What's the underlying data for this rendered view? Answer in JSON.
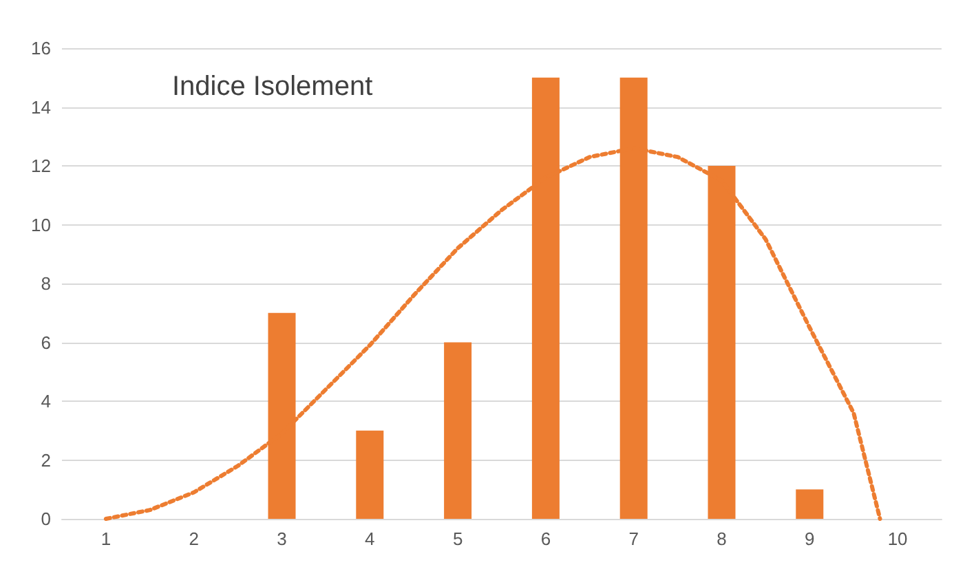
{
  "chart_data": {
    "type": "bar",
    "title": "Indice Isolement",
    "x": [
      1,
      2,
      3,
      4,
      5,
      6,
      7,
      8,
      9,
      10
    ],
    "xlim": [
      0.5,
      10.5
    ],
    "xticks": [
      1,
      2,
      3,
      4,
      5,
      6,
      7,
      8,
      9,
      10
    ],
    "ylim": [
      0,
      16
    ],
    "yticks": [
      0,
      2,
      4,
      6,
      8,
      10,
      12,
      14,
      16
    ],
    "grid": "y",
    "series": [
      {
        "color": "#ed7d31",
        "values": [
          0,
          0,
          7,
          3,
          6,
          15,
          15,
          12,
          1,
          0
        ]
      },
      {
        "type": "line",
        "color": "#ed7d31",
        "marker": "none",
        "line_style": "dotted",
        "x": [
          1,
          1.5,
          2,
          2.5,
          3,
          3.5,
          4,
          4.5,
          5,
          5.5,
          6,
          6.5,
          7,
          7.5,
          8,
          8.5,
          9,
          9.5,
          9.8
        ],
        "values": [
          0,
          0.3,
          0.9,
          1.8,
          2.9,
          4.4,
          5.9,
          7.6,
          9.2,
          10.5,
          11.6,
          12.3,
          12.6,
          12.3,
          11.5,
          9.5,
          6.5,
          3.6,
          0
        ]
      }
    ]
  }
}
